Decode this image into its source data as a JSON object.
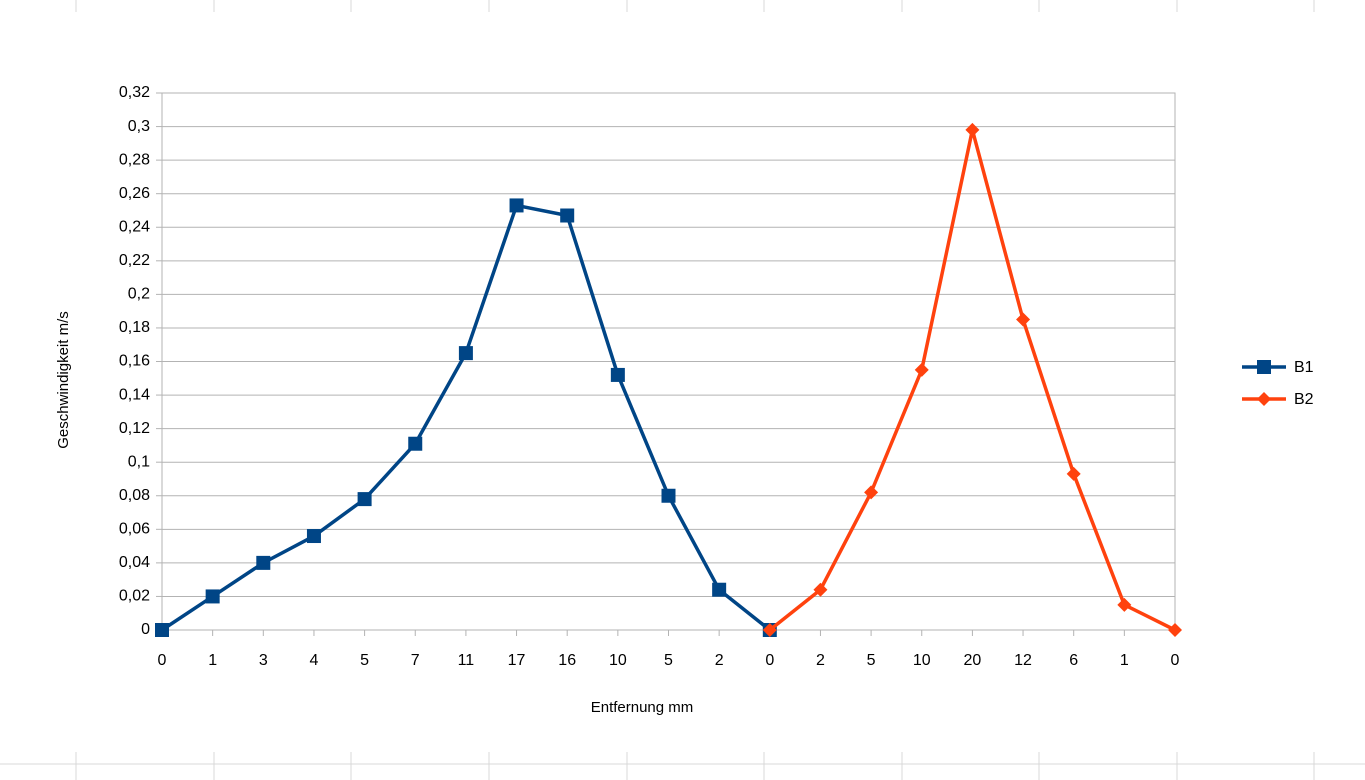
{
  "chart_data": {
    "type": "line",
    "x_label": "Entfernung mm",
    "y_label": "Geschwindigkeit m/s",
    "categories": [
      "0",
      "1",
      "3",
      "4",
      "5",
      "7",
      "11",
      "17",
      "16",
      "10",
      "5",
      "2",
      "0",
      "2",
      "5",
      "10",
      "20",
      "12",
      "6",
      "1",
      "0"
    ],
    "series": [
      {
        "name": "B1",
        "color": "#004586",
        "marker": "square",
        "values": [
          0,
          0.02,
          0.04,
          0.056,
          0.078,
          0.111,
          0.165,
          0.253,
          0.247,
          0.152,
          0.08,
          0.024,
          0,
          null,
          null,
          null,
          null,
          null,
          null,
          null,
          null
        ]
      },
      {
        "name": "B2",
        "color": "#ff420e",
        "marker": "diamond",
        "values": [
          null,
          null,
          null,
          null,
          null,
          null,
          null,
          null,
          null,
          null,
          null,
          null,
          0,
          0.024,
          0.082,
          0.155,
          0.298,
          0.185,
          0.093,
          0.015,
          0
        ]
      }
    ],
    "ylim": [
      0,
      0.32
    ],
    "yticks": [
      0,
      {
        "value": 0.02,
        "label": "0,02"
      },
      {
        "value": 0.04,
        "label": "0,04"
      },
      {
        "value": 0.06,
        "label": "0,06"
      },
      {
        "value": 0.08,
        "label": "0,08"
      },
      {
        "value": 0.1,
        "label": "0,1"
      },
      {
        "value": 0.12,
        "label": "0,12"
      },
      {
        "value": 0.14,
        "label": "0,14"
      },
      {
        "value": 0.16,
        "label": "0,16"
      },
      {
        "value": 0.18,
        "label": "0,18"
      },
      {
        "value": 0.2,
        "label": "0,2"
      },
      {
        "value": 0.22,
        "label": "0,22"
      },
      {
        "value": 0.24,
        "label": "0,24"
      },
      {
        "value": 0.26,
        "label": "0,26"
      },
      {
        "value": 0.28,
        "label": "0,28"
      },
      {
        "value": 0.3,
        "label": "0,3"
      },
      {
        "value": 0.32,
        "label": "0,32"
      }
    ],
    "grid": true,
    "legend_position": "right"
  }
}
